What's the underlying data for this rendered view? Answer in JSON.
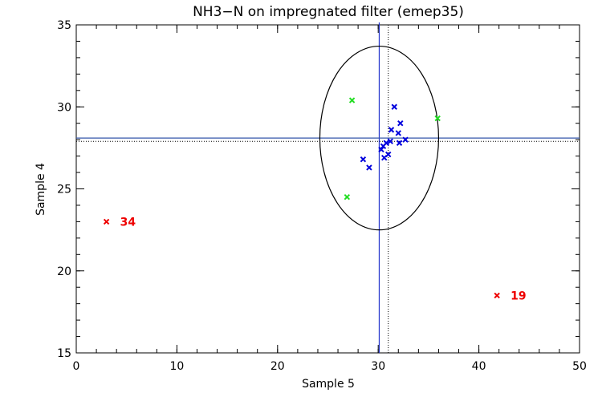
{
  "chart_data": {
    "type": "scatter",
    "title": "NH3−N on impregnated filter (emep35)",
    "xlabel": "Sample 5",
    "ylabel": "Sample 4",
    "xlim": [
      0,
      50
    ],
    "ylim": [
      15,
      35
    ],
    "xticks": [
      0,
      10,
      20,
      30,
      40,
      50
    ],
    "yticks": [
      15,
      20,
      25,
      30,
      35
    ],
    "x_minor_step": 2,
    "y_minor_step": 1,
    "colors": {
      "blue": "#0000dd",
      "green": "#22dd22",
      "red": "#ee0000",
      "axis": "#000000",
      "ref_line": "#3355aa"
    },
    "series": [
      {
        "color": "#0000dd",
        "points": [
          {
            "x": 28.5,
            "y": 26.8
          },
          {
            "x": 29.1,
            "y": 26.3
          },
          {
            "x": 30.3,
            "y": 27.4
          },
          {
            "x": 30.5,
            "y": 27.6
          },
          {
            "x": 30.6,
            "y": 26.9
          },
          {
            "x": 30.8,
            "y": 27.8
          },
          {
            "x": 31.0,
            "y": 27.1
          },
          {
            "x": 31.2,
            "y": 27.9
          },
          {
            "x": 31.3,
            "y": 28.6
          },
          {
            "x": 31.6,
            "y": 30.0
          },
          {
            "x": 32.0,
            "y": 28.4
          },
          {
            "x": 32.1,
            "y": 27.8
          },
          {
            "x": 32.2,
            "y": 29.0
          },
          {
            "x": 32.7,
            "y": 28.0
          }
        ]
      },
      {
        "color": "#22dd22",
        "points": [
          {
            "x": 27.4,
            "y": 30.4
          },
          {
            "x": 26.9,
            "y": 24.5
          },
          {
            "x": 35.9,
            "y": 29.3
          }
        ]
      },
      {
        "color": "#ee0000",
        "points": [
          {
            "x": 3.0,
            "y": 23.0,
            "label": "34"
          },
          {
            "x": 41.8,
            "y": 18.5,
            "label": "19"
          }
        ]
      }
    ],
    "reference_lines": {
      "solid_vertical_x": 30.1,
      "solid_horizontal_y": 28.1,
      "dotted_vertical_x": 31.0,
      "dotted_horizontal_y": 27.9
    },
    "ellipse": {
      "center_x": 30.1,
      "center_y": 28.1,
      "radius_x": 5.9,
      "radius_y": 5.6
    },
    "grid": false
  }
}
